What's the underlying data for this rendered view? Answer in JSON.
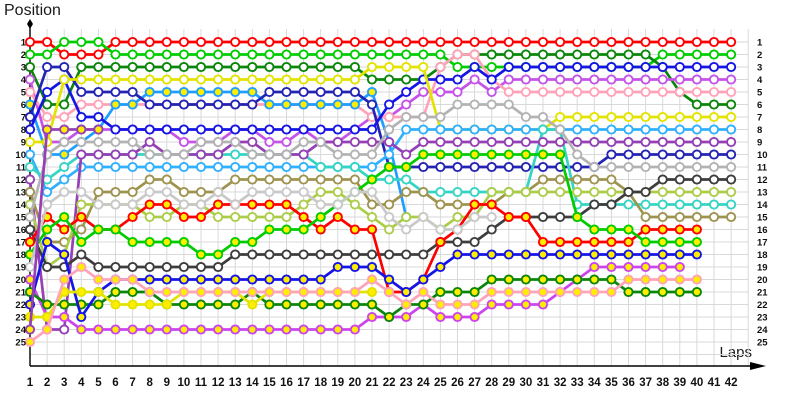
{
  "chart_data": {
    "type": "line",
    "title": "",
    "ylabel": "Position",
    "xlabel": "Laps",
    "grid": true,
    "ylim": [
      1,
      25
    ],
    "xlim": [
      1,
      42
    ],
    "y_axis_inverted": true,
    "x_ticks": [
      1,
      2,
      3,
      4,
      5,
      6,
      7,
      8,
      9,
      10,
      11,
      12,
      13,
      14,
      15,
      16,
      17,
      18,
      19,
      20,
      21,
      22,
      23,
      24,
      25,
      26,
      27,
      28,
      29,
      30,
      31,
      32,
      33,
      34,
      35,
      36,
      37,
      38,
      39,
      40,
      41,
      42
    ],
    "y_ticks_left": [
      1,
      2,
      3,
      4,
      5,
      6,
      7,
      8,
      9,
      10,
      11,
      12,
      13,
      14,
      15,
      16,
      17,
      18,
      19,
      20,
      21,
      22,
      23,
      24,
      25
    ],
    "y_ticks_right": [
      1,
      2,
      3,
      4,
      5,
      6,
      7,
      8,
      9,
      10,
      11,
      12,
      13,
      14,
      15,
      16,
      17,
      18,
      19,
      20,
      21,
      22,
      23,
      24,
      25
    ],
    "grid_color": "#d9d9d9",
    "axis_color": "#000000",
    "series": [
      {
        "start_position": 1,
        "color": "#ff0000",
        "marker_fill": "#ffffff",
        "positions": [
          1,
          1,
          2,
          2,
          2,
          1,
          1,
          1,
          1,
          1,
          1,
          1,
          1,
          1,
          1,
          1,
          1,
          1,
          1,
          1,
          1,
          1,
          1,
          1,
          1,
          1,
          1,
          1,
          1,
          1,
          1,
          1,
          1,
          1,
          1,
          1,
          1,
          1,
          1,
          1,
          1,
          1
        ]
      },
      {
        "start_position": 2,
        "color": "#00cc00",
        "marker_fill": "#ffffff",
        "positions": [
          2,
          2,
          1,
          1,
          1,
          2,
          2,
          2,
          2,
          2,
          2,
          2,
          2,
          2,
          2,
          2,
          2,
          2,
          2,
          2,
          2,
          2,
          2,
          2,
          2,
          3,
          3,
          3,
          3,
          3,
          3,
          3,
          3,
          3,
          3,
          3,
          3,
          2,
          2,
          2,
          2,
          2
        ]
      },
      {
        "start_position": 3,
        "color": "#0a860a",
        "marker_fill": "#ffffff",
        "positions": [
          3,
          6,
          6,
          3,
          3,
          3,
          3,
          3,
          3,
          3,
          3,
          3,
          3,
          3,
          3,
          3,
          3,
          3,
          3,
          3,
          4,
          4,
          4,
          4,
          3,
          2,
          2,
          2,
          2,
          2,
          2,
          2,
          2,
          2,
          2,
          2,
          2,
          3,
          5,
          6,
          6,
          6
        ]
      },
      {
        "start_position": 4,
        "color": "#c653e8",
        "marker_fill": "#ffffff",
        "positions": [
          4,
          9,
          9,
          8,
          8,
          8,
          8,
          8,
          8,
          9,
          9,
          9,
          8,
          8,
          9,
          9,
          8,
          9,
          9,
          8,
          7,
          7,
          6,
          5,
          5,
          5,
          4,
          5,
          4,
          4,
          4,
          4,
          4,
          4,
          4,
          4,
          4,
          4,
          4,
          4,
          4,
          4
        ]
      },
      {
        "start_position": 5,
        "color": "#ffa3b8",
        "marker_fill": "#ffffff",
        "positions": [
          5,
          7,
          7,
          6,
          6,
          6,
          6,
          6,
          6,
          6,
          6,
          6,
          6,
          6,
          6,
          6,
          6,
          6,
          6,
          6,
          7,
          7,
          7,
          7,
          3,
          2,
          2,
          4,
          5,
          5,
          5,
          5,
          5,
          5,
          5,
          5,
          5,
          5,
          5,
          5,
          5,
          5
        ]
      },
      {
        "start_position": 6,
        "color": "#1e9fff",
        "marker_fill": "#ffee00",
        "positions": [
          6,
          10,
          10,
          9,
          8,
          6,
          6,
          5,
          5,
          5,
          5,
          5,
          5,
          5,
          6,
          6,
          6,
          6,
          6,
          6,
          5,
          9,
          15,
          null,
          null,
          null,
          null,
          null,
          null,
          null,
          null,
          null,
          null,
          null,
          null,
          null,
          null,
          null,
          null,
          null,
          null,
          null
        ]
      },
      {
        "start_position": 7,
        "color": "#2424b4",
        "marker_fill": "#ffffff",
        "positions": [
          7,
          3,
          3,
          5,
          5,
          5,
          5,
          6,
          6,
          6,
          6,
          6,
          6,
          6,
          5,
          5,
          5,
          5,
          5,
          5,
          6,
          11,
          11,
          11,
          11,
          11,
          11,
          11,
          11,
          11,
          11,
          11,
          11,
          11,
          10,
          10,
          10,
          10,
          10,
          10,
          10,
          10
        ]
      },
      {
        "start_position": 8,
        "color": "#1515e6",
        "marker_fill": "#ffffff",
        "positions": [
          8,
          5,
          4,
          7,
          7,
          8,
          8,
          8,
          8,
          8,
          8,
          8,
          8,
          8,
          8,
          8,
          8,
          8,
          8,
          8,
          8,
          6,
          5,
          4,
          4,
          4,
          3,
          4,
          3,
          3,
          3,
          3,
          3,
          3,
          3,
          3,
          3,
          3,
          3,
          3,
          3,
          3
        ]
      },
      {
        "start_position": 9,
        "color": "#e3e300",
        "marker_fill": "#ffffff",
        "positions": [
          9,
          9,
          4,
          4,
          4,
          4,
          4,
          4,
          4,
          4,
          4,
          4,
          4,
          4,
          4,
          4,
          4,
          4,
          4,
          4,
          3,
          3,
          3,
          3,
          8,
          8,
          8,
          8,
          8,
          8,
          8,
          7,
          7,
          7,
          7,
          7,
          7,
          7,
          7,
          7,
          7,
          7
        ]
      },
      {
        "start_position": 10,
        "color": "#30b0ff",
        "marker_fill": "#ffffff",
        "positions": [
          10,
          13,
          12,
          11,
          11,
          11,
          11,
          11,
          11,
          11,
          11,
          11,
          11,
          11,
          11,
          11,
          11,
          11,
          11,
          11,
          11,
          10,
          8,
          8,
          8,
          8,
          8,
          8,
          8,
          8,
          8,
          8,
          8,
          8,
          8,
          8,
          8,
          8,
          8,
          8,
          8,
          8
        ]
      },
      {
        "start_position": 11,
        "color": "#35d4c3",
        "marker_fill": "#ffffff",
        "positions": [
          11,
          12,
          11,
          10,
          10,
          10,
          10,
          10,
          10,
          10,
          10,
          10,
          10,
          10,
          10,
          10,
          10,
          11,
          11,
          11,
          12,
          12,
          12,
          13,
          13,
          13,
          13,
          13,
          13,
          13,
          8,
          8,
          14,
          14,
          14,
          14,
          14,
          14,
          14,
          14,
          14,
          14
        ]
      },
      {
        "start_position": 12,
        "color": "#9540b5",
        "marker_fill": "#ffffff",
        "positions": [
          12,
          24,
          24,
          10,
          10,
          10,
          10,
          9,
          10,
          10,
          10,
          10,
          9,
          9,
          10,
          10,
          10,
          9,
          9,
          9,
          9,
          9,
          10,
          9,
          9,
          9,
          9,
          9,
          9,
          9,
          9,
          9,
          9,
          9,
          9,
          9,
          9,
          9,
          9,
          9,
          9,
          9
        ]
      },
      {
        "start_position": 13,
        "color": "#9e9450",
        "marker_fill": "#ffffff",
        "positions": [
          13,
          17,
          17,
          16,
          13,
          13,
          13,
          12,
          12,
          13,
          13,
          13,
          12,
          12,
          12,
          12,
          12,
          12,
          12,
          12,
          14,
          14,
          13,
          13,
          14,
          14,
          14,
          14,
          13,
          13,
          12,
          12,
          12,
          12,
          12,
          13,
          15,
          15,
          15,
          15,
          15,
          15
        ]
      },
      {
        "start_position": 14,
        "color": "#accd4a",
        "marker_fill": "#ffffff",
        "positions": [
          14,
          19,
          18,
          14,
          14,
          14,
          14,
          15,
          15,
          14,
          14,
          15,
          15,
          15,
          15,
          15,
          14,
          13,
          13,
          14,
          15,
          16,
          15,
          15,
          16,
          15,
          15,
          13,
          13,
          13,
          13,
          13,
          13,
          13,
          13,
          13,
          13,
          13,
          13,
          13,
          13,
          13
        ]
      },
      {
        "start_position": 15,
        "color": "#b3b3b3",
        "marker_fill": "#ffffff",
        "positions": [
          15,
          10,
          9,
          9,
          9,
          9,
          9,
          10,
          10,
          10,
          9,
          9,
          9,
          10,
          10,
          10,
          9,
          9,
          10,
          10,
          10,
          8,
          7,
          7,
          7,
          6,
          6,
          6,
          6,
          7,
          7,
          8,
          10,
          11,
          11,
          11,
          11,
          11,
          11,
          11,
          11,
          11
        ]
      },
      {
        "start_position": 16,
        "color": "#3d3d3d",
        "marker_fill": "#ffffff",
        "positions": [
          16,
          19,
          19,
          18,
          19,
          19,
          19,
          19,
          19,
          19,
          19,
          19,
          18,
          18,
          18,
          18,
          18,
          18,
          18,
          18,
          18,
          18,
          18,
          18,
          17,
          17,
          17,
          16,
          15,
          15,
          15,
          15,
          15,
          14,
          14,
          13,
          13,
          12,
          12,
          12,
          12,
          12
        ]
      },
      {
        "start_position": 17,
        "color": "#ff0000",
        "marker_fill": "#ffee00",
        "positions": [
          17,
          15,
          16,
          15,
          16,
          16,
          15,
          14,
          14,
          15,
          15,
          14,
          14,
          14,
          14,
          14,
          15,
          16,
          15,
          16,
          16,
          21,
          21,
          20,
          17,
          16,
          14,
          14,
          15,
          15,
          17,
          17,
          17,
          17,
          17,
          17,
          16,
          16,
          16,
          16,
          null,
          null
        ]
      },
      {
        "start_position": 18,
        "color": "#00cc00",
        "marker_fill": "#ffee00",
        "positions": [
          18,
          16,
          15,
          17,
          16,
          16,
          17,
          17,
          17,
          17,
          18,
          18,
          17,
          17,
          16,
          16,
          16,
          15,
          14,
          13,
          12,
          11,
          11,
          10,
          10,
          10,
          10,
          10,
          10,
          10,
          10,
          10,
          15,
          16,
          16,
          16,
          17,
          17,
          17,
          17,
          null,
          null
        ]
      },
      {
        "start_position": 19,
        "color": "#c9c9c9",
        "marker_fill": "#ffffff",
        "positions": [
          19,
          14,
          13,
          13,
          14,
          14,
          14,
          13,
          13,
          14,
          14,
          13,
          14,
          13,
          13,
          13,
          13,
          14,
          14,
          13,
          13,
          15,
          16,
          15,
          16,
          16,
          15,
          15,
          null,
          null,
          null,
          null,
          null,
          null,
          null,
          null,
          null,
          null,
          null,
          null,
          null,
          null
        ]
      },
      {
        "start_position": 20,
        "color": "#cc44ee",
        "marker_fill": "#ffee00",
        "positions": [
          20,
          23,
          23,
          24,
          24,
          24,
          24,
          24,
          24,
          24,
          24,
          24,
          24,
          24,
          24,
          24,
          24,
          24,
          24,
          24,
          23,
          23,
          23,
          22,
          23,
          23,
          23,
          22,
          22,
          22,
          22,
          21,
          20,
          19,
          19,
          19,
          19,
          19,
          19,
          null,
          null,
          null
        ]
      },
      {
        "start_position": 21,
        "color": "#0a860a",
        "marker_fill": "#ffee00",
        "positions": [
          21,
          22,
          22,
          22,
          22,
          21,
          21,
          21,
          22,
          22,
          22,
          22,
          22,
          21,
          22,
          22,
          22,
          22,
          22,
          22,
          22,
          23,
          22,
          22,
          21,
          21,
          21,
          20,
          20,
          20,
          20,
          20,
          20,
          20,
          20,
          21,
          21,
          21,
          21,
          21,
          null,
          null
        ]
      },
      {
        "start_position": 22,
        "color": "#1515e6",
        "marker_fill": "#ffee00",
        "positions": [
          22,
          17,
          18,
          23,
          21,
          20,
          20,
          20,
          20,
          20,
          20,
          20,
          20,
          20,
          20,
          20,
          20,
          20,
          19,
          19,
          19,
          20,
          21,
          20,
          19,
          18,
          18,
          18,
          18,
          18,
          18,
          18,
          18,
          18,
          18,
          18,
          18,
          18,
          18,
          18,
          null,
          null
        ]
      },
      {
        "start_position": 23,
        "color": "#e3e300",
        "marker_fill": "#ffee00",
        "positions": [
          23,
          23,
          21,
          21,
          21,
          22,
          22,
          22,
          22,
          21,
          21,
          21,
          21,
          22,
          21,
          21,
          21,
          21,
          21,
          21,
          21,
          null,
          null,
          null,
          null,
          null,
          null,
          null,
          null,
          null,
          null,
          null,
          null,
          null,
          null,
          null,
          null,
          null,
          null,
          null,
          null,
          null
        ]
      },
      {
        "start_position": 24,
        "color": "#9540b5",
        "marker_fill": "#ffee00",
        "positions": [
          24,
          8,
          8,
          8,
          8,
          null,
          null,
          null,
          null,
          null,
          null,
          null,
          null,
          null,
          null,
          null,
          null,
          null,
          null,
          null,
          null,
          null,
          null,
          null,
          null,
          null,
          null,
          null,
          null,
          null,
          null,
          null,
          null,
          null,
          null,
          null,
          null,
          null,
          null,
          null,
          null,
          null
        ]
      },
      {
        "start_position": 25,
        "color": "#ffa3b8",
        "marker_fill": "#ffee00",
        "positions": [
          25,
          24,
          20,
          19,
          20,
          20,
          20,
          21,
          21,
          21,
          21,
          21,
          21,
          21,
          21,
          21,
          21,
          21,
          21,
          21,
          20,
          21,
          22,
          21,
          22,
          22,
          22,
          21,
          21,
          21,
          21,
          21,
          21,
          21,
          21,
          20,
          20,
          20,
          20,
          20,
          null,
          null
        ]
      }
    ]
  },
  "labels": {
    "position_axis": "Position",
    "laps_axis": "Laps"
  }
}
